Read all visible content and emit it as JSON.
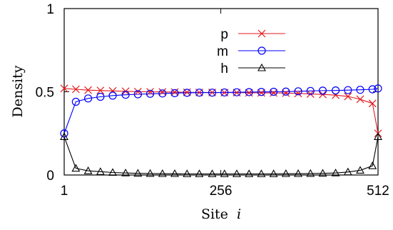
{
  "chart_data": {
    "type": "line",
    "xlabel": "Site",
    "xlabel_var": "i",
    "ylabel": "Density",
    "xlim": [
      1,
      512
    ],
    "ylim": [
      0,
      1
    ],
    "xticks": [
      {
        "value": 1,
        "label": "1"
      },
      {
        "value": 256,
        "label": "256"
      },
      {
        "value": 512,
        "label": "512"
      }
    ],
    "yticks": [
      {
        "value": 0,
        "label": "0"
      },
      {
        "value": 0.5,
        "label": "0.5"
      },
      {
        "value": 1,
        "label": "1"
      }
    ],
    "grid": false,
    "legend_position": "top-right",
    "series": [
      {
        "name": "p",
        "color": "#e41a1c",
        "marker": "cross",
        "points": [
          [
            1,
            0.52
          ],
          [
            20,
            0.515
          ],
          [
            40,
            0.51
          ],
          [
            60,
            0.508
          ],
          [
            80,
            0.505
          ],
          [
            101,
            0.503
          ],
          [
            121,
            0.501
          ],
          [
            141,
            0.5
          ],
          [
            161,
            0.499
          ],
          [
            181,
            0.498
          ],
          [
            201,
            0.497
          ],
          [
            221,
            0.496
          ],
          [
            242,
            0.496
          ],
          [
            262,
            0.495
          ],
          [
            282,
            0.495
          ],
          [
            302,
            0.494
          ],
          [
            322,
            0.494
          ],
          [
            342,
            0.493
          ],
          [
            362,
            0.492
          ],
          [
            382,
            0.49
          ],
          [
            402,
            0.487
          ],
          [
            422,
            0.484
          ],
          [
            443,
            0.48
          ],
          [
            463,
            0.472
          ],
          [
            483,
            0.455
          ],
          [
            503,
            0.43
          ],
          [
            512,
            0.25
          ]
        ]
      },
      {
        "name": "m",
        "color": "#0000ff",
        "marker": "circle",
        "points": [
          [
            1,
            0.25
          ],
          [
            20,
            0.44
          ],
          [
            40,
            0.46
          ],
          [
            60,
            0.47
          ],
          [
            80,
            0.477
          ],
          [
            101,
            0.482
          ],
          [
            121,
            0.485
          ],
          [
            141,
            0.488
          ],
          [
            161,
            0.49
          ],
          [
            181,
            0.492
          ],
          [
            201,
            0.494
          ],
          [
            221,
            0.495
          ],
          [
            242,
            0.495
          ],
          [
            262,
            0.496
          ],
          [
            282,
            0.497
          ],
          [
            302,
            0.498
          ],
          [
            322,
            0.499
          ],
          [
            342,
            0.5
          ],
          [
            362,
            0.501
          ],
          [
            382,
            0.503
          ],
          [
            402,
            0.505
          ],
          [
            422,
            0.507
          ],
          [
            443,
            0.508
          ],
          [
            463,
            0.51
          ],
          [
            483,
            0.512
          ],
          [
            503,
            0.515
          ],
          [
            512,
            0.52
          ]
        ]
      },
      {
        "name": "h",
        "color": "#000000",
        "marker": "triangle",
        "points": [
          [
            1,
            0.23
          ],
          [
            20,
            0.04
          ],
          [
            40,
            0.025
          ],
          [
            60,
            0.02
          ],
          [
            80,
            0.015
          ],
          [
            101,
            0.012
          ],
          [
            121,
            0.01
          ],
          [
            141,
            0.009
          ],
          [
            161,
            0.008
          ],
          [
            181,
            0.008
          ],
          [
            201,
            0.007
          ],
          [
            221,
            0.007
          ],
          [
            242,
            0.007
          ],
          [
            262,
            0.007
          ],
          [
            282,
            0.007
          ],
          [
            302,
            0.007
          ],
          [
            322,
            0.007
          ],
          [
            342,
            0.007
          ],
          [
            362,
            0.008
          ],
          [
            382,
            0.008
          ],
          [
            402,
            0.009
          ],
          [
            422,
            0.01
          ],
          [
            443,
            0.012
          ],
          [
            463,
            0.018
          ],
          [
            483,
            0.028
          ],
          [
            503,
            0.055
          ],
          [
            512,
            0.23
          ]
        ]
      }
    ]
  }
}
